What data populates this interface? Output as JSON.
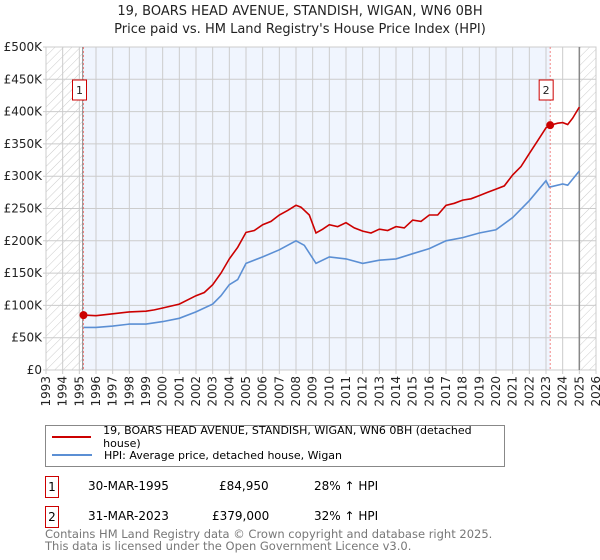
{
  "title": [
    "19, BOARS HEAD AVENUE, STANDISH, WIGAN, WN6 0BH",
    "Price paid vs. HM Land Registry's House Price Index (HPI)"
  ],
  "chart_data": {
    "type": "line",
    "title": "19, BOARS HEAD AVENUE, STANDISH, WIGAN, WN6 0BH — Price paid vs. HM Land Registry's House Price Index (HPI)",
    "xlim": [
      1993,
      2026
    ],
    "ylim": [
      0,
      500000
    ],
    "x_ticks": [
      "1993",
      "1994",
      "1995",
      "1996",
      "1997",
      "1998",
      "1999",
      "2000",
      "2001",
      "2002",
      "2003",
      "2004",
      "2005",
      "2006",
      "2007",
      "2008",
      "2009",
      "2010",
      "2011",
      "2012",
      "2013",
      "2014",
      "2015",
      "2016",
      "2017",
      "2018",
      "2019",
      "2020",
      "2021",
      "2022",
      "2023",
      "2024",
      "2025",
      "2026"
    ],
    "y_ticks": [
      {
        "v": 0,
        "label": "£0"
      },
      {
        "v": 50000,
        "label": "£50K"
      },
      {
        "v": 100000,
        "label": "£100K"
      },
      {
        "v": 150000,
        "label": "£150K"
      },
      {
        "v": 200000,
        "label": "£200K"
      },
      {
        "v": 250000,
        "label": "£250K"
      },
      {
        "v": 300000,
        "label": "£300K"
      },
      {
        "v": 350000,
        "label": "£350K"
      },
      {
        "v": 400000,
        "label": "£400K"
      },
      {
        "v": 450000,
        "label": "£450K"
      },
      {
        "v": 500000,
        "label": "£500K"
      }
    ],
    "grid": true,
    "series": [
      {
        "name": "19, BOARS HEAD AVENUE, STANDISH, WIGAN, WN6 0BH (detached house)",
        "color": "#cc0000",
        "x": [
          1995.25,
          1996,
          1997,
          1998,
          1999,
          1999.5,
          2000,
          2001,
          2002,
          2002.5,
          2003,
          2003.5,
          2004,
          2004.5,
          2005,
          2005.5,
          2006,
          2006.5,
          2007,
          2007.5,
          2008,
          2008.3,
          2008.8,
          2009.2,
          2009.6,
          2010,
          2010.5,
          2011,
          2011.5,
          2012,
          2012.5,
          2013,
          2013.5,
          2014,
          2014.5,
          2015,
          2015.5,
          2016,
          2016.5,
          2017,
          2017.5,
          2018,
          2018.5,
          2019,
          2019.5,
          2020,
          2020.5,
          2021,
          2021.5,
          2022,
          2022.5,
          2023,
          2023.25,
          2023.7,
          2024,
          2024.3,
          2024.6,
          2025
        ],
        "y": [
          85000,
          84000,
          87000,
          90000,
          91000,
          93000,
          96000,
          102000,
          115000,
          120000,
          132000,
          150000,
          172000,
          190000,
          213000,
          216000,
          225000,
          230000,
          240000,
          247000,
          255000,
          252000,
          240000,
          212000,
          218000,
          225000,
          222000,
          228000,
          220000,
          215000,
          212000,
          218000,
          216000,
          222000,
          220000,
          232000,
          230000,
          240000,
          240000,
          255000,
          258000,
          263000,
          265000,
          270000,
          275000,
          280000,
          285000,
          302000,
          315000,
          335000,
          355000,
          375000,
          379000,
          382000,
          383000,
          380000,
          390000,
          407000
        ]
      },
      {
        "name": "HPI: Average price, detached house, Wigan",
        "color": "#5b8fd4",
        "x": [
          1995.25,
          1996,
          1997,
          1998,
          1999,
          2000,
          2001,
          2002,
          2003,
          2003.5,
          2004,
          2004.5,
          2005,
          2006,
          2007,
          2008,
          2008.5,
          2009.2,
          2010,
          2011,
          2012,
          2013,
          2014,
          2015,
          2016,
          2017,
          2018,
          2019,
          2020,
          2021,
          2022,
          2023,
          2023.2,
          2024,
          2024.3,
          2025
        ],
        "y": [
          66000,
          66000,
          68000,
          71000,
          71000,
          75000,
          80000,
          90000,
          102000,
          115000,
          132000,
          140000,
          165000,
          175000,
          186000,
          200000,
          193000,
          165000,
          175000,
          172000,
          165000,
          170000,
          172000,
          180000,
          188000,
          200000,
          205000,
          212000,
          217000,
          236000,
          262000,
          293000,
          283000,
          288000,
          286000,
          308000
        ]
      }
    ],
    "sales": [
      {
        "label": "1",
        "x": 1995.25,
        "price": 84950
      },
      {
        "label": "2",
        "x": 2023.25,
        "price": 379000
      }
    ],
    "hatch_before": 1995.2,
    "hatch_after": 2025.0,
    "legend_placement": "below"
  },
  "legend": [
    "19, BOARS HEAD AVENUE, STANDISH, WIGAN, WN6 0BH (detached house)",
    "HPI: Average price, detached house, Wigan"
  ],
  "transactions": [
    {
      "label": "1",
      "date": "30-MAR-1995",
      "price": "£84,950",
      "hpi": "28% ↑ HPI"
    },
    {
      "label": "2",
      "date": "31-MAR-2023",
      "price": "£379,000",
      "hpi": "32% ↑ HPI"
    }
  ],
  "footer": [
    "Contains HM Land Registry data © Crown copyright and database right 2025.",
    "This data is licensed under the Open Government Licence v3.0."
  ]
}
